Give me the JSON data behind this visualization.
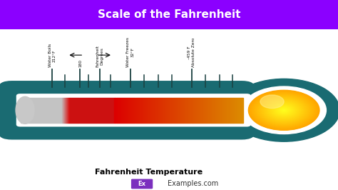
{
  "title": "Scale of the Fahrenheit",
  "title_bg": "#8B00FF",
  "title_color": "#FFFFFF",
  "subtitle": "Fahrenheit Temperature",
  "subtitle_color": "#000000",
  "bg_color": "#FFFFFF",
  "teal_color": "#1A6B72",
  "watermark_text": "Examples.com",
  "watermark_prefix": "Ex",
  "watermark_prefix_bg": "#7B2FBE",
  "watermark_prefix_color": "#FFFFFF",
  "tick_labels": [
    {
      "xn": 0.115,
      "lines": [
        "Water Boils",
        "212°F"
      ],
      "arrow": null
    },
    {
      "xn": 0.215,
      "lines": [
        "180"
      ],
      "arrow": "left"
    },
    {
      "xn": 0.285,
      "lines": [
        "Fahrenheit",
        "Degrees"
      ],
      "arrow": "right"
    },
    {
      "xn": 0.395,
      "lines": [
        "Water Freezes",
        "32°F"
      ],
      "arrow": null
    },
    {
      "xn": 0.615,
      "lines": [
        "-459 F",
        "Absolute Zero"
      ],
      "arrow": null
    }
  ],
  "major_ticks_xn": [
    0.115,
    0.215,
    0.285,
    0.395,
    0.615
  ],
  "minor_ticks_xn": [
    0.16,
    0.245,
    0.325,
    0.445,
    0.495,
    0.545,
    0.665,
    0.715,
    0.76
  ],
  "title_fontsize": 11,
  "subtitle_fontsize": 8,
  "label_fontsize": 4.2
}
